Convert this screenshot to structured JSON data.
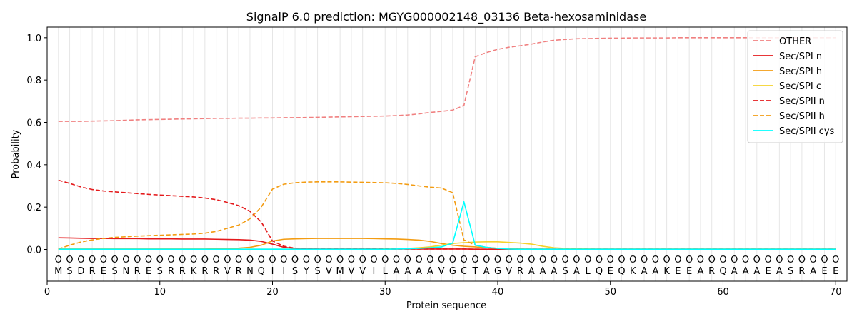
{
  "chart_data": {
    "type": "line",
    "title": "SignalP 6.0 prediction: MGYG000002148_03136 Beta-hexosaminidase",
    "xlabel": "Protein sequence",
    "ylabel": "Probability",
    "xlim": [
      0,
      71
    ],
    "ylim": [
      -0.15,
      1.05
    ],
    "xticks": [
      0,
      10,
      20,
      30,
      40,
      50,
      60,
      70
    ],
    "yticks": [
      0.0,
      0.2,
      0.4,
      0.6,
      0.8,
      1.0
    ],
    "ytick_labels": [
      "0.0",
      "0.2",
      "0.4",
      "0.6",
      "0.8",
      "1.0"
    ],
    "grid": "vertical lines at each residue position",
    "legend_position": "top-right",
    "sequence": [
      "M",
      "S",
      "D",
      "R",
      "E",
      "S",
      "N",
      "R",
      "E",
      "S",
      "R",
      "R",
      "K",
      "R",
      "R",
      "V",
      "R",
      "N",
      "Q",
      "I",
      "I",
      "S",
      "Y",
      "S",
      "V",
      "M",
      "V",
      "V",
      "I",
      "L",
      "A",
      "A",
      "A",
      "A",
      "V",
      "G",
      "C",
      "T",
      "A",
      "G",
      "V",
      "R",
      "A",
      "A",
      "A",
      "S",
      "A",
      "L",
      "Q",
      "E",
      "Q",
      "K",
      "A",
      "A",
      "K",
      "E",
      "E",
      "A",
      "R",
      "Q",
      "A",
      "A",
      "A",
      "E",
      "A",
      "S",
      "R",
      "A",
      "E",
      "E"
    ],
    "position_marker": "O",
    "x": [
      1,
      2,
      3,
      4,
      5,
      6,
      7,
      8,
      9,
      10,
      11,
      12,
      13,
      14,
      15,
      16,
      17,
      18,
      19,
      20,
      21,
      22,
      23,
      24,
      25,
      26,
      27,
      28,
      29,
      30,
      31,
      32,
      33,
      34,
      35,
      36,
      37,
      38,
      39,
      40,
      41,
      42,
      43,
      44,
      45,
      46,
      47,
      48,
      49,
      50,
      51,
      52,
      53,
      54,
      55,
      56,
      57,
      58,
      59,
      60,
      61,
      62,
      63,
      64,
      65,
      66,
      67,
      68,
      69,
      70
    ],
    "series": [
      {
        "name": "OTHER",
        "color": "#f08080",
        "dash": true,
        "values": [
          0.605,
          0.605,
          0.605,
          0.606,
          0.607,
          0.608,
          0.61,
          0.612,
          0.613,
          0.614,
          0.615,
          0.616,
          0.617,
          0.618,
          0.619,
          0.619,
          0.62,
          0.62,
          0.621,
          0.621,
          0.622,
          0.622,
          0.623,
          0.624,
          0.625,
          0.626,
          0.627,
          0.628,
          0.629,
          0.63,
          0.632,
          0.635,
          0.64,
          0.647,
          0.652,
          0.658,
          0.68,
          0.91,
          0.93,
          0.945,
          0.955,
          0.962,
          0.97,
          0.98,
          0.988,
          0.992,
          0.995,
          0.996,
          0.997,
          0.998,
          0.998,
          0.999,
          0.999,
          0.999,
          0.999,
          1.0,
          1.0,
          1.0,
          1.0,
          1.0,
          1.0,
          1.0,
          1.0,
          1.0,
          1.0,
          1.0,
          1.0,
          1.0,
          1.0,
          1.0
        ]
      },
      {
        "name": "Sec/SPI n",
        "color": "#e41a1c",
        "dash": false,
        "values": [
          0.055,
          0.054,
          0.053,
          0.052,
          0.052,
          0.051,
          0.051,
          0.051,
          0.05,
          0.05,
          0.05,
          0.049,
          0.049,
          0.049,
          0.048,
          0.047,
          0.046,
          0.044,
          0.038,
          0.025,
          0.01,
          0.005,
          0.003,
          0.002,
          0.002,
          0.002,
          0.002,
          0.002,
          0.002,
          0.002,
          0.002,
          0.002,
          0.002,
          0.002,
          0.002,
          0.002,
          0.002,
          0.001,
          0.001,
          0.001,
          0.001,
          0.001,
          0.001,
          0.001,
          0.001,
          0.001,
          0.001,
          0.001,
          0.001,
          0.001,
          0.001,
          0.001,
          0.001,
          0.001,
          0.001,
          0.001,
          0.001,
          0.001,
          0.001,
          0.001,
          0.001,
          0.001,
          0.001,
          0.001,
          0.001,
          0.001,
          0.001,
          0.001,
          0.001,
          0.001
        ]
      },
      {
        "name": "Sec/SPI h",
        "color": "#f39c12",
        "dash": false,
        "values": [
          0.002,
          0.002,
          0.002,
          0.002,
          0.002,
          0.002,
          0.002,
          0.002,
          0.002,
          0.002,
          0.002,
          0.002,
          0.002,
          0.002,
          0.003,
          0.004,
          0.006,
          0.01,
          0.02,
          0.04,
          0.048,
          0.05,
          0.051,
          0.052,
          0.052,
          0.052,
          0.052,
          0.052,
          0.051,
          0.05,
          0.049,
          0.047,
          0.044,
          0.038,
          0.028,
          0.02,
          0.015,
          0.012,
          0.008,
          0.005,
          0.003,
          0.002,
          0.001,
          0.001,
          0.001,
          0.001,
          0.001,
          0.001,
          0.001,
          0.001,
          0.001,
          0.001,
          0.001,
          0.001,
          0.001,
          0.001,
          0.001,
          0.001,
          0.001,
          0.001,
          0.001,
          0.001,
          0.001,
          0.001,
          0.001,
          0.001,
          0.001,
          0.001,
          0.001,
          0.001
        ]
      },
      {
        "name": "Sec/SPI c",
        "color": "#f5d22a",
        "dash": false,
        "values": [
          0.001,
          0.001,
          0.001,
          0.001,
          0.001,
          0.001,
          0.001,
          0.001,
          0.001,
          0.001,
          0.001,
          0.001,
          0.001,
          0.001,
          0.001,
          0.001,
          0.001,
          0.001,
          0.001,
          0.001,
          0.001,
          0.001,
          0.001,
          0.001,
          0.001,
          0.001,
          0.001,
          0.001,
          0.001,
          0.002,
          0.003,
          0.005,
          0.008,
          0.012,
          0.02,
          0.028,
          0.032,
          0.035,
          0.036,
          0.036,
          0.033,
          0.03,
          0.025,
          0.015,
          0.008,
          0.005,
          0.003,
          0.002,
          0.001,
          0.001,
          0.001,
          0.001,
          0.001,
          0.001,
          0.001,
          0.001,
          0.001,
          0.001,
          0.001,
          0.001,
          0.001,
          0.001,
          0.001,
          0.001,
          0.001,
          0.001,
          0.001,
          0.001,
          0.001,
          0.001
        ]
      },
      {
        "name": "Sec/SPII n",
        "color": "#e41a1c",
        "dash": true,
        "values": [
          0.327,
          0.312,
          0.295,
          0.283,
          0.276,
          0.272,
          0.268,
          0.264,
          0.26,
          0.257,
          0.254,
          0.251,
          0.248,
          0.243,
          0.235,
          0.222,
          0.207,
          0.18,
          0.13,
          0.04,
          0.015,
          0.006,
          0.003,
          0.002,
          0.002,
          0.002,
          0.002,
          0.002,
          0.002,
          0.002,
          0.002,
          0.002,
          0.002,
          0.002,
          0.002,
          0.002,
          0.002,
          0.001,
          0.001,
          0.001,
          0.001,
          0.001,
          0.001,
          0.001,
          0.001,
          0.001,
          0.001,
          0.001,
          0.001,
          0.001,
          0.001,
          0.001,
          0.001,
          0.001,
          0.001,
          0.001,
          0.001,
          0.001,
          0.001,
          0.001,
          0.001,
          0.001,
          0.001,
          0.001,
          0.001,
          0.001,
          0.001,
          0.001,
          0.001,
          0.001
        ]
      },
      {
        "name": "Sec/SPII h",
        "color": "#f39c12",
        "dash": true,
        "values": [
          0.002,
          0.02,
          0.035,
          0.045,
          0.052,
          0.057,
          0.06,
          0.063,
          0.065,
          0.067,
          0.069,
          0.071,
          0.073,
          0.077,
          0.085,
          0.1,
          0.115,
          0.145,
          0.2,
          0.285,
          0.308,
          0.315,
          0.318,
          0.319,
          0.319,
          0.319,
          0.318,
          0.317,
          0.316,
          0.315,
          0.312,
          0.307,
          0.3,
          0.294,
          0.29,
          0.268,
          0.045,
          0.02,
          0.01,
          0.005,
          0.003,
          0.002,
          0.001,
          0.001,
          0.001,
          0.001,
          0.001,
          0.001,
          0.001,
          0.001,
          0.001,
          0.001,
          0.001,
          0.001,
          0.001,
          0.001,
          0.001,
          0.001,
          0.001,
          0.001,
          0.001,
          0.001,
          0.001,
          0.001,
          0.001,
          0.001,
          0.001,
          0.001,
          0.001,
          0.001
        ]
      },
      {
        "name": "Sec/SPII cys",
        "color": "#00ffff",
        "dash": false,
        "values": [
          0.001,
          0.001,
          0.001,
          0.001,
          0.001,
          0.001,
          0.001,
          0.001,
          0.001,
          0.001,
          0.001,
          0.001,
          0.001,
          0.001,
          0.001,
          0.001,
          0.001,
          0.001,
          0.001,
          0.001,
          0.001,
          0.001,
          0.001,
          0.001,
          0.001,
          0.001,
          0.001,
          0.001,
          0.001,
          0.001,
          0.002,
          0.003,
          0.005,
          0.008,
          0.012,
          0.03,
          0.225,
          0.02,
          0.01,
          0.005,
          0.002,
          0.001,
          0.001,
          0.001,
          0.001,
          0.001,
          0.001,
          0.001,
          0.001,
          0.001,
          0.001,
          0.001,
          0.001,
          0.001,
          0.001,
          0.001,
          0.001,
          0.001,
          0.001,
          0.001,
          0.001,
          0.001,
          0.001,
          0.001,
          0.001,
          0.001,
          0.001,
          0.001,
          0.001,
          0.001
        ]
      }
    ]
  }
}
